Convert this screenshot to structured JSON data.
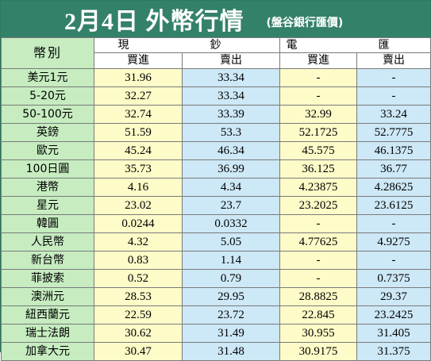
{
  "title": "2月4日 外幣行情",
  "subtitle": "(盤谷銀行匯價)",
  "header": {
    "currency_label": "幣別",
    "cash_label": "現　鈔",
    "telegraphic_label": "電　匯",
    "buy_label": "買進",
    "sell_label": "賣出"
  },
  "rows": [
    {
      "name": "美元1元",
      "cash_buy": "31.96",
      "cash_sell": "33.34",
      "tt_buy": "-",
      "tt_sell": "-"
    },
    {
      "name": "5-20元",
      "cash_buy": "32.27",
      "cash_sell": "33.34",
      "tt_buy": "-",
      "tt_sell": "-"
    },
    {
      "name": "50-100元",
      "cash_buy": "32.74",
      "cash_sell": "33.39",
      "tt_buy": "32.99",
      "tt_sell": "33.24"
    },
    {
      "name": "英鎊",
      "cash_buy": "51.59",
      "cash_sell": "53.3",
      "tt_buy": "52.1725",
      "tt_sell": "52.7775"
    },
    {
      "name": "歐元",
      "cash_buy": "45.24",
      "cash_sell": "46.34",
      "tt_buy": "45.575",
      "tt_sell": "46.1375"
    },
    {
      "name": "100日圓",
      "cash_buy": "35.73",
      "cash_sell": "36.99",
      "tt_buy": "36.125",
      "tt_sell": "36.77"
    },
    {
      "name": "港幣",
      "cash_buy": "4.16",
      "cash_sell": "4.34",
      "tt_buy": "4.23875",
      "tt_sell": "4.28625"
    },
    {
      "name": "星元",
      "cash_buy": "23.02",
      "cash_sell": "23.7",
      "tt_buy": "23.2025",
      "tt_sell": "23.6125"
    },
    {
      "name": "韓圓",
      "cash_buy": "0.0244",
      "cash_sell": "0.0332",
      "tt_buy": "-",
      "tt_sell": "-"
    },
    {
      "name": "人民幣",
      "cash_buy": "4.32",
      "cash_sell": "5.05",
      "tt_buy": "4.77625",
      "tt_sell": "4.9275"
    },
    {
      "name": "新台幣",
      "cash_buy": "0.83",
      "cash_sell": "1.14",
      "tt_buy": "-",
      "tt_sell": "-"
    },
    {
      "name": "菲披索",
      "cash_buy": "0.52",
      "cash_sell": "0.79",
      "tt_buy": "-",
      "tt_sell": "0.7375"
    },
    {
      "name": "澳洲元",
      "cash_buy": "28.53",
      "cash_sell": "29.95",
      "tt_buy": "28.8825",
      "tt_sell": "29.37"
    },
    {
      "name": "紐西蘭元",
      "cash_buy": "22.59",
      "cash_sell": "23.72",
      "tt_buy": "22.845",
      "tt_sell": "23.2425"
    },
    {
      "name": "瑞士法朗",
      "cash_buy": "30.62",
      "cash_sell": "31.49",
      "tt_buy": "30.955",
      "tt_sell": "31.405"
    },
    {
      "name": "加拿大元",
      "cash_buy": "30.47",
      "cash_sell": "31.48",
      "tt_buy": "30.9175",
      "tt_sell": "31.375"
    }
  ],
  "colors": {
    "title_bg": "#34816a",
    "name_bg": "#c6ecc0",
    "buy_bg": "#fdfbc8",
    "sell_bg": "#cde8f6"
  }
}
